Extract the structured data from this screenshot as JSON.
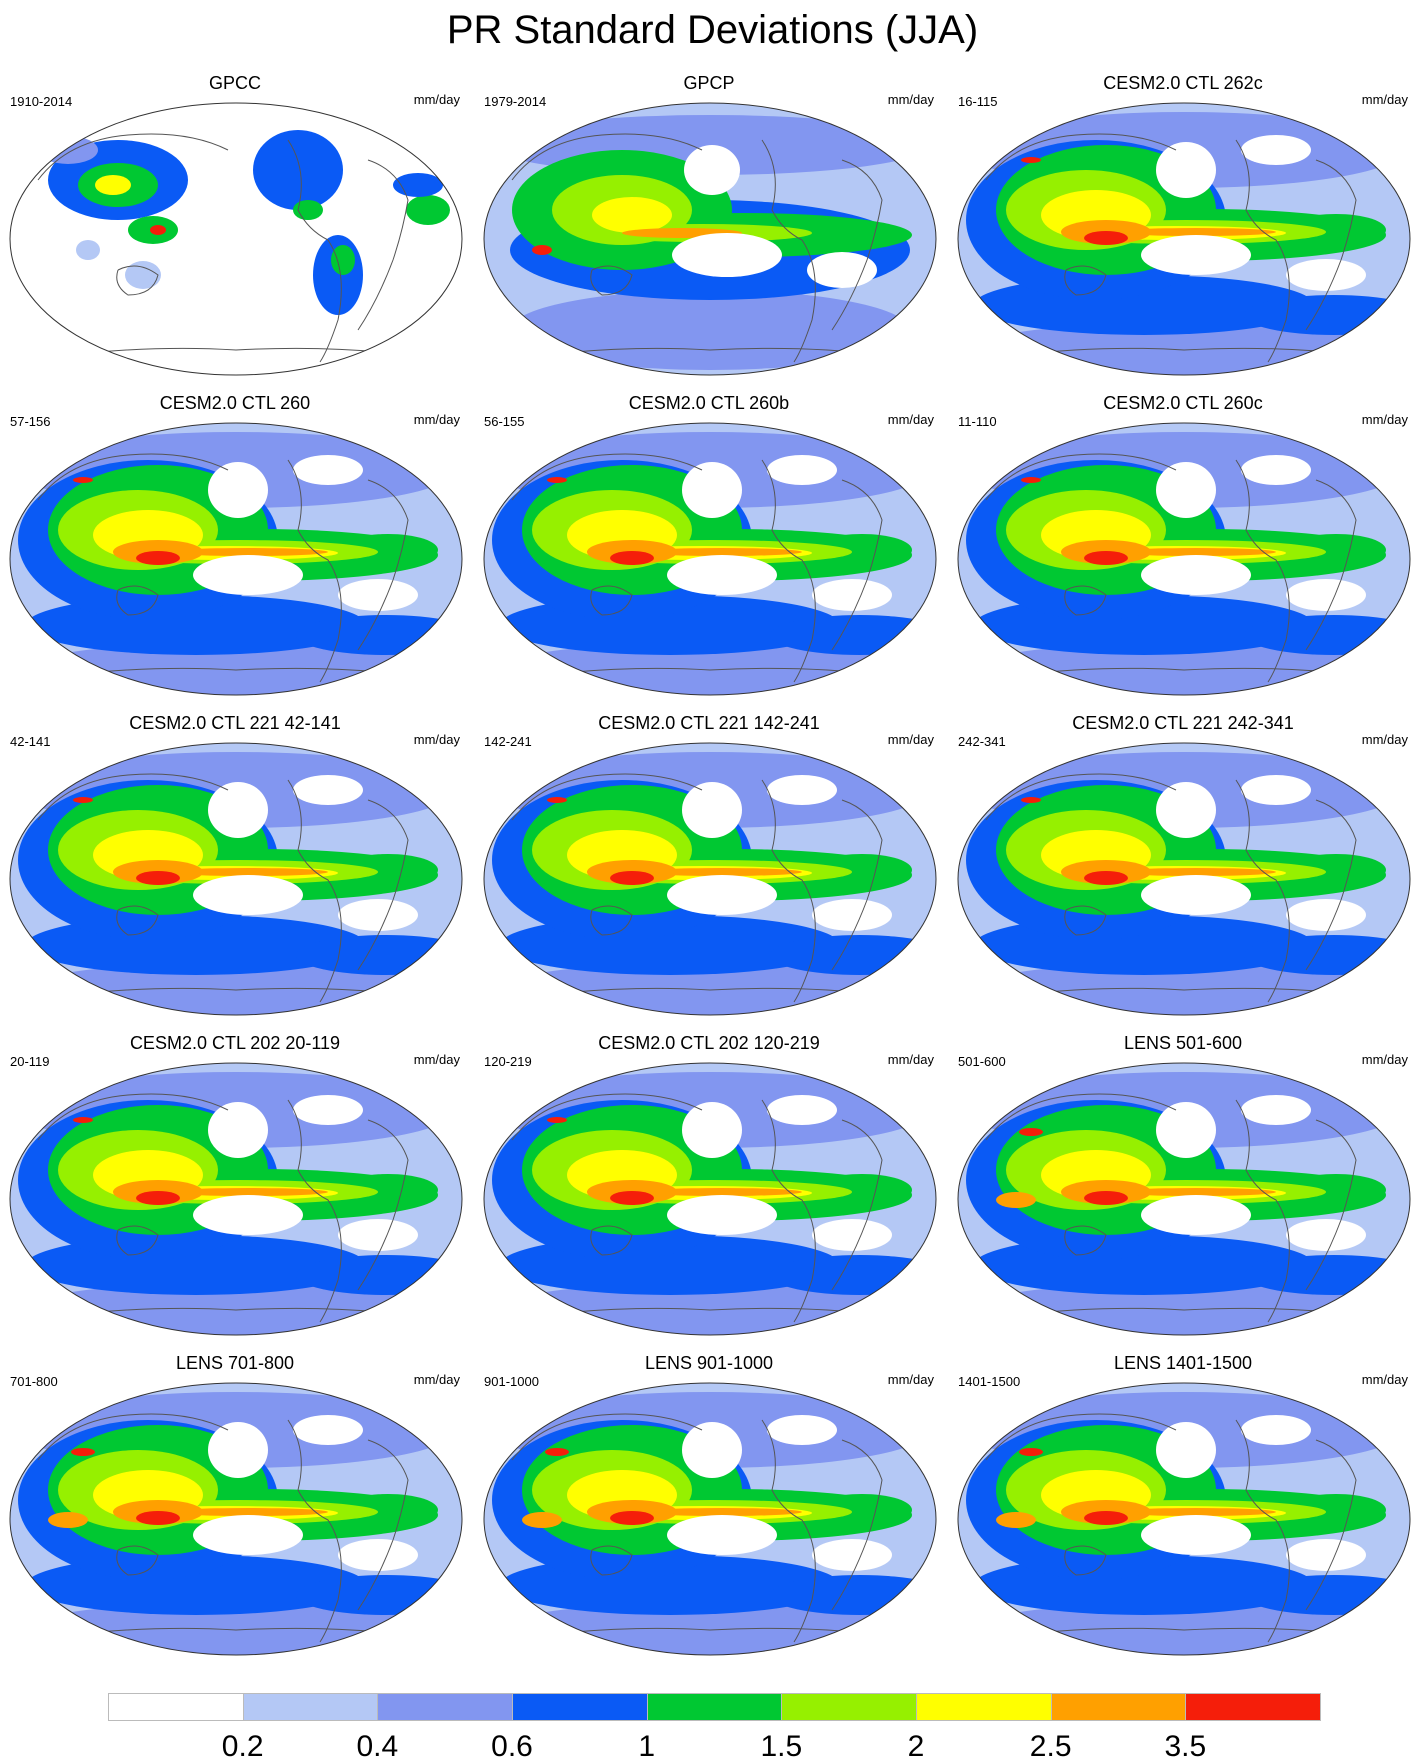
{
  "title": "PR Standard Deviations (JJA)",
  "units": "mm/day",
  "panels": [
    {
      "title": "GPCC",
      "years": "1910-2014",
      "style": "obs_land"
    },
    {
      "title": "GPCP",
      "years": "1979-2014",
      "style": "obs"
    },
    {
      "title": "CESM2.0 CTL 262c",
      "years": "16-115",
      "style": "model"
    },
    {
      "title": "CESM2.0 CTL 260",
      "years": "57-156",
      "style": "model"
    },
    {
      "title": "CESM2.0 CTL 260b",
      "years": "56-155",
      "style": "model"
    },
    {
      "title": "CESM2.0 CTL 260c",
      "years": "11-110",
      "style": "model"
    },
    {
      "title": "CESM2.0 CTL 221 42-141",
      "years": "42-141",
      "style": "model"
    },
    {
      "title": "CESM2.0 CTL 221 142-241",
      "years": "142-241",
      "style": "model"
    },
    {
      "title": "CESM2.0 CTL 221 242-341",
      "years": "242-341",
      "style": "model"
    },
    {
      "title": "CESM2.0 CTL 202 20-119",
      "years": "20-119",
      "style": "model"
    },
    {
      "title": "CESM2.0 CTL 202 120-219",
      "years": "120-219",
      "style": "model"
    },
    {
      "title": "LENS 501-600",
      "years": "501-600",
      "style": "lens"
    },
    {
      "title": "LENS 701-800",
      "years": "701-800",
      "style": "lens"
    },
    {
      "title": "LENS 901-1000",
      "years": "901-1000",
      "style": "lens"
    },
    {
      "title": "LENS 1401-1500",
      "years": "1401-1500",
      "style": "lens"
    }
  ],
  "colorbar": {
    "colors": [
      "#ffffff",
      "#b4c8f5",
      "#8296f0",
      "#0a5af5",
      "#00c832",
      "#96f000",
      "#ffff00",
      "#ffa000",
      "#f51e0a"
    ],
    "labels": [
      "0.2",
      "0.4",
      "0.6",
      "1",
      "1.5",
      "2",
      "2.5",
      "3.5"
    ]
  }
}
